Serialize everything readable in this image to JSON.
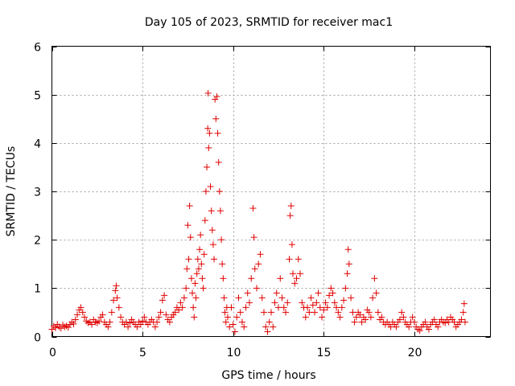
{
  "chart_data": {
    "type": "scatter",
    "title": "Day 105 of 2023, SRMTID for receiver mac1",
    "xlabel": "GPS time / hours",
    "ylabel": "SRMTID / TECUs",
    "xlim": [
      0,
      24.2
    ],
    "ylim": [
      0,
      6
    ],
    "xticks": [
      0,
      5,
      10,
      15,
      20
    ],
    "yticks": [
      0,
      1,
      2,
      3,
      4,
      5,
      6
    ],
    "xtick_labels": [
      "0",
      "5",
      "10",
      "15",
      "20"
    ],
    "ytick_labels": [
      "0",
      "1",
      "2",
      "3",
      "4",
      "5",
      "6"
    ],
    "grid": true,
    "marker": "plus",
    "series": [
      {
        "name": "mac1",
        "color": "#e00000",
        "points": [
          [
            0.0,
            0.15
          ],
          [
            0.1,
            0.22
          ],
          [
            0.2,
            0.18
          ],
          [
            0.3,
            0.25
          ],
          [
            0.4,
            0.2
          ],
          [
            0.5,
            0.17
          ],
          [
            0.6,
            0.24
          ],
          [
            0.7,
            0.2
          ],
          [
            0.8,
            0.22
          ],
          [
            0.9,
            0.19
          ],
          [
            1.0,
            0.25
          ],
          [
            1.1,
            0.3
          ],
          [
            1.2,
            0.26
          ],
          [
            1.3,
            0.35
          ],
          [
            1.4,
            0.45
          ],
          [
            1.5,
            0.55
          ],
          [
            1.6,
            0.6
          ],
          [
            1.7,
            0.5
          ],
          [
            1.8,
            0.4
          ],
          [
            1.9,
            0.32
          ],
          [
            2.0,
            0.28
          ],
          [
            2.1,
            0.3
          ],
          [
            2.2,
            0.25
          ],
          [
            2.3,
            0.35
          ],
          [
            2.4,
            0.3
          ],
          [
            2.5,
            0.28
          ],
          [
            2.6,
            0.32
          ],
          [
            2.7,
            0.4
          ],
          [
            2.8,
            0.45
          ],
          [
            2.9,
            0.3
          ],
          [
            3.0,
            0.25
          ],
          [
            3.1,
            0.2
          ],
          [
            3.2,
            0.3
          ],
          [
            3.3,
            0.5
          ],
          [
            3.4,
            0.75
          ],
          [
            3.5,
            0.95
          ],
          [
            3.55,
            1.05
          ],
          [
            3.6,
            0.8
          ],
          [
            3.7,
            0.6
          ],
          [
            3.8,
            0.4
          ],
          [
            3.9,
            0.3
          ],
          [
            4.0,
            0.25
          ],
          [
            4.1,
            0.3
          ],
          [
            4.2,
            0.2
          ],
          [
            4.3,
            0.28
          ],
          [
            4.4,
            0.35
          ],
          [
            4.5,
            0.3
          ],
          [
            4.6,
            0.25
          ],
          [
            4.7,
            0.2
          ],
          [
            4.8,
            0.3
          ],
          [
            4.9,
            0.25
          ],
          [
            5.0,
            0.32
          ],
          [
            5.1,
            0.4
          ],
          [
            5.2,
            0.3
          ],
          [
            5.3,
            0.25
          ],
          [
            5.4,
            0.3
          ],
          [
            5.5,
            0.35
          ],
          [
            5.6,
            0.3
          ],
          [
            5.7,
            0.2
          ],
          [
            5.8,
            0.3
          ],
          [
            5.9,
            0.4
          ],
          [
            6.0,
            0.5
          ],
          [
            6.1,
            0.75
          ],
          [
            6.2,
            0.85
          ],
          [
            6.3,
            0.45
          ],
          [
            6.4,
            0.35
          ],
          [
            6.5,
            0.3
          ],
          [
            6.6,
            0.4
          ],
          [
            6.7,
            0.45
          ],
          [
            6.8,
            0.5
          ],
          [
            6.9,
            0.6
          ],
          [
            7.0,
            0.55
          ],
          [
            7.1,
            0.7
          ],
          [
            7.2,
            0.6
          ],
          [
            7.3,
            0.8
          ],
          [
            7.4,
            1.0
          ],
          [
            7.45,
            1.4
          ],
          [
            7.5,
            2.3
          ],
          [
            7.55,
            1.6
          ],
          [
            7.6,
            2.7
          ],
          [
            7.65,
            2.05
          ],
          [
            7.7,
            1.2
          ],
          [
            7.75,
            0.9
          ],
          [
            7.8,
            0.6
          ],
          [
            7.85,
            0.4
          ],
          [
            7.9,
            1.1
          ],
          [
            7.95,
            0.8
          ],
          [
            8.0,
            1.3
          ],
          [
            8.05,
            1.6
          ],
          [
            8.1,
            1.4
          ],
          [
            8.15,
            1.8
          ],
          [
            8.2,
            2.1
          ],
          [
            8.25,
            1.5
          ],
          [
            8.3,
            1.2
          ],
          [
            8.35,
            1.0
          ],
          [
            8.4,
            1.7
          ],
          [
            8.45,
            2.4
          ],
          [
            8.5,
            3.0
          ],
          [
            8.55,
            3.5
          ],
          [
            8.6,
            4.3
          ],
          [
            8.62,
            5.03
          ],
          [
            8.65,
            3.9
          ],
          [
            8.7,
            4.2
          ],
          [
            8.75,
            3.1
          ],
          [
            8.8,
            2.6
          ],
          [
            8.85,
            2.2
          ],
          [
            8.9,
            1.9
          ],
          [
            8.95,
            1.6
          ],
          [
            9.0,
            4.9
          ],
          [
            9.05,
            4.5
          ],
          [
            9.1,
            4.96
          ],
          [
            9.15,
            4.2
          ],
          [
            9.2,
            3.6
          ],
          [
            9.25,
            3.0
          ],
          [
            9.3,
            2.6
          ],
          [
            9.35,
            2.0
          ],
          [
            9.4,
            1.5
          ],
          [
            9.45,
            1.2
          ],
          [
            9.5,
            0.8
          ],
          [
            9.55,
            0.5
          ],
          [
            9.6,
            0.3
          ],
          [
            9.65,
            0.6
          ],
          [
            9.7,
            0.4
          ],
          [
            9.8,
            0.2
          ],
          [
            9.9,
            0.6
          ],
          [
            10.0,
            0.25
          ],
          [
            10.1,
            0.1
          ],
          [
            10.2,
            0.4
          ],
          [
            10.3,
            0.8
          ],
          [
            10.4,
            0.5
          ],
          [
            10.5,
            0.3
          ],
          [
            10.6,
            0.2
          ],
          [
            10.7,
            0.6
          ],
          [
            10.8,
            0.9
          ],
          [
            10.9,
            0.7
          ],
          [
            11.0,
            1.2
          ],
          [
            11.1,
            2.65
          ],
          [
            11.15,
            2.05
          ],
          [
            11.2,
            1.4
          ],
          [
            11.3,
            1.0
          ],
          [
            11.4,
            1.5
          ],
          [
            11.5,
            1.7
          ],
          [
            11.6,
            0.8
          ],
          [
            11.7,
            0.5
          ],
          [
            11.8,
            0.2
          ],
          [
            11.9,
            0.1
          ],
          [
            12.0,
            0.3
          ],
          [
            12.1,
            0.5
          ],
          [
            12.2,
            0.2
          ],
          [
            12.3,
            0.7
          ],
          [
            12.4,
            0.9
          ],
          [
            12.5,
            0.6
          ],
          [
            12.6,
            1.2
          ],
          [
            12.7,
            0.8
          ],
          [
            12.8,
            0.6
          ],
          [
            12.9,
            0.5
          ],
          [
            13.0,
            0.7
          ],
          [
            13.1,
            1.6
          ],
          [
            13.15,
            2.5
          ],
          [
            13.2,
            2.7
          ],
          [
            13.25,
            1.9
          ],
          [
            13.3,
            1.3
          ],
          [
            13.4,
            1.1
          ],
          [
            13.5,
            1.2
          ],
          [
            13.6,
            1.6
          ],
          [
            13.7,
            1.3
          ],
          [
            13.8,
            0.7
          ],
          [
            13.9,
            0.6
          ],
          [
            14.0,
            0.4
          ],
          [
            14.1,
            0.6
          ],
          [
            14.2,
            0.5
          ],
          [
            14.3,
            0.8
          ],
          [
            14.4,
            0.65
          ],
          [
            14.5,
            0.5
          ],
          [
            14.6,
            0.7
          ],
          [
            14.7,
            0.9
          ],
          [
            14.8,
            0.6
          ],
          [
            14.9,
            0.4
          ],
          [
            15.0,
            0.55
          ],
          [
            15.1,
            0.7
          ],
          [
            15.2,
            0.6
          ],
          [
            15.3,
            0.85
          ],
          [
            15.4,
            1.0
          ],
          [
            15.5,
            0.9
          ],
          [
            15.6,
            0.7
          ],
          [
            15.7,
            0.6
          ],
          [
            15.8,
            0.5
          ],
          [
            15.9,
            0.4
          ],
          [
            16.0,
            0.6
          ],
          [
            16.1,
            0.75
          ],
          [
            16.2,
            1.0
          ],
          [
            16.3,
            1.3
          ],
          [
            16.35,
            1.8
          ],
          [
            16.4,
            1.5
          ],
          [
            16.5,
            0.8
          ],
          [
            16.6,
            0.5
          ],
          [
            16.7,
            0.3
          ],
          [
            16.8,
            0.4
          ],
          [
            16.9,
            0.5
          ],
          [
            17.0,
            0.45
          ],
          [
            17.1,
            0.3
          ],
          [
            17.2,
            0.4
          ],
          [
            17.3,
            0.35
          ],
          [
            17.4,
            0.55
          ],
          [
            17.5,
            0.5
          ],
          [
            17.6,
            0.4
          ],
          [
            17.7,
            0.8
          ],
          [
            17.8,
            1.2
          ],
          [
            17.9,
            0.9
          ],
          [
            18.0,
            0.5
          ],
          [
            18.1,
            0.35
          ],
          [
            18.2,
            0.4
          ],
          [
            18.3,
            0.3
          ],
          [
            18.4,
            0.25
          ],
          [
            18.5,
            0.3
          ],
          [
            18.6,
            0.25
          ],
          [
            18.7,
            0.2
          ],
          [
            18.8,
            0.3
          ],
          [
            18.9,
            0.25
          ],
          [
            19.0,
            0.2
          ],
          [
            19.1,
            0.3
          ],
          [
            19.2,
            0.35
          ],
          [
            19.3,
            0.5
          ],
          [
            19.4,
            0.4
          ],
          [
            19.5,
            0.3
          ],
          [
            19.6,
            0.25
          ],
          [
            19.7,
            0.2
          ],
          [
            19.8,
            0.3
          ],
          [
            19.9,
            0.4
          ],
          [
            20.0,
            0.3
          ],
          [
            20.1,
            0.2
          ],
          [
            20.2,
            0.15
          ],
          [
            20.3,
            0.12
          ],
          [
            20.4,
            0.2
          ],
          [
            20.5,
            0.25
          ],
          [
            20.6,
            0.3
          ],
          [
            20.7,
            0.2
          ],
          [
            20.8,
            0.15
          ],
          [
            20.9,
            0.25
          ],
          [
            21.0,
            0.3
          ],
          [
            21.1,
            0.35
          ],
          [
            21.2,
            0.25
          ],
          [
            21.3,
            0.2
          ],
          [
            21.4,
            0.3
          ],
          [
            21.5,
            0.35
          ],
          [
            21.6,
            0.3
          ],
          [
            21.7,
            0.28
          ],
          [
            21.8,
            0.35
          ],
          [
            21.9,
            0.3
          ],
          [
            22.0,
            0.4
          ],
          [
            22.1,
            0.35
          ],
          [
            22.2,
            0.3
          ],
          [
            22.3,
            0.2
          ],
          [
            22.4,
            0.25
          ],
          [
            22.5,
            0.3
          ],
          [
            22.6,
            0.35
          ],
          [
            22.7,
            0.5
          ],
          [
            22.75,
            0.68
          ],
          [
            22.8,
            0.3
          ]
        ]
      }
    ]
  }
}
